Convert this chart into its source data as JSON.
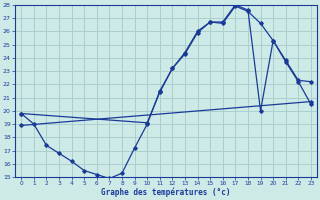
{
  "background_color": "#ceeae6",
  "grid_color": "#aacfcc",
  "line_color": "#1a3a9a",
  "xlim": [
    -0.5,
    23.5
  ],
  "ylim": [
    15,
    28
  ],
  "yticks": [
    15,
    16,
    17,
    18,
    19,
    20,
    21,
    22,
    23,
    24,
    25,
    26,
    27,
    28
  ],
  "xticks": [
    0,
    1,
    2,
    3,
    4,
    5,
    6,
    7,
    8,
    9,
    10,
    11,
    12,
    13,
    14,
    15,
    16,
    17,
    18,
    19,
    20,
    21,
    22,
    23
  ],
  "line1_x": [
    0,
    1,
    2,
    3,
    4,
    5,
    6,
    7,
    8,
    9,
    10,
    11,
    12,
    13,
    14,
    15,
    16,
    17,
    18,
    19,
    20,
    21,
    22,
    23
  ],
  "line1_y": [
    19.8,
    19.0,
    17.4,
    16.8,
    16.2,
    15.5,
    15.2,
    14.9,
    15.3,
    17.2,
    19.0,
    21.5,
    23.2,
    24.3,
    25.9,
    26.7,
    26.6,
    27.9,
    27.5,
    26.6,
    25.3,
    23.7,
    22.2,
    20.5
  ],
  "line2_x": [
    0,
    10,
    11,
    12,
    13,
    14,
    15,
    16,
    17,
    18,
    19,
    20,
    21,
    22,
    23
  ],
  "line2_y": [
    19.8,
    19.1,
    21.4,
    23.2,
    24.4,
    26.0,
    26.7,
    26.7,
    28.0,
    27.6,
    20.0,
    25.3,
    23.8,
    22.3,
    22.2
  ],
  "line3_x": [
    0,
    23
  ],
  "line3_y": [
    18.9,
    20.7
  ],
  "xlabel": "Graphe des températures (°c)"
}
